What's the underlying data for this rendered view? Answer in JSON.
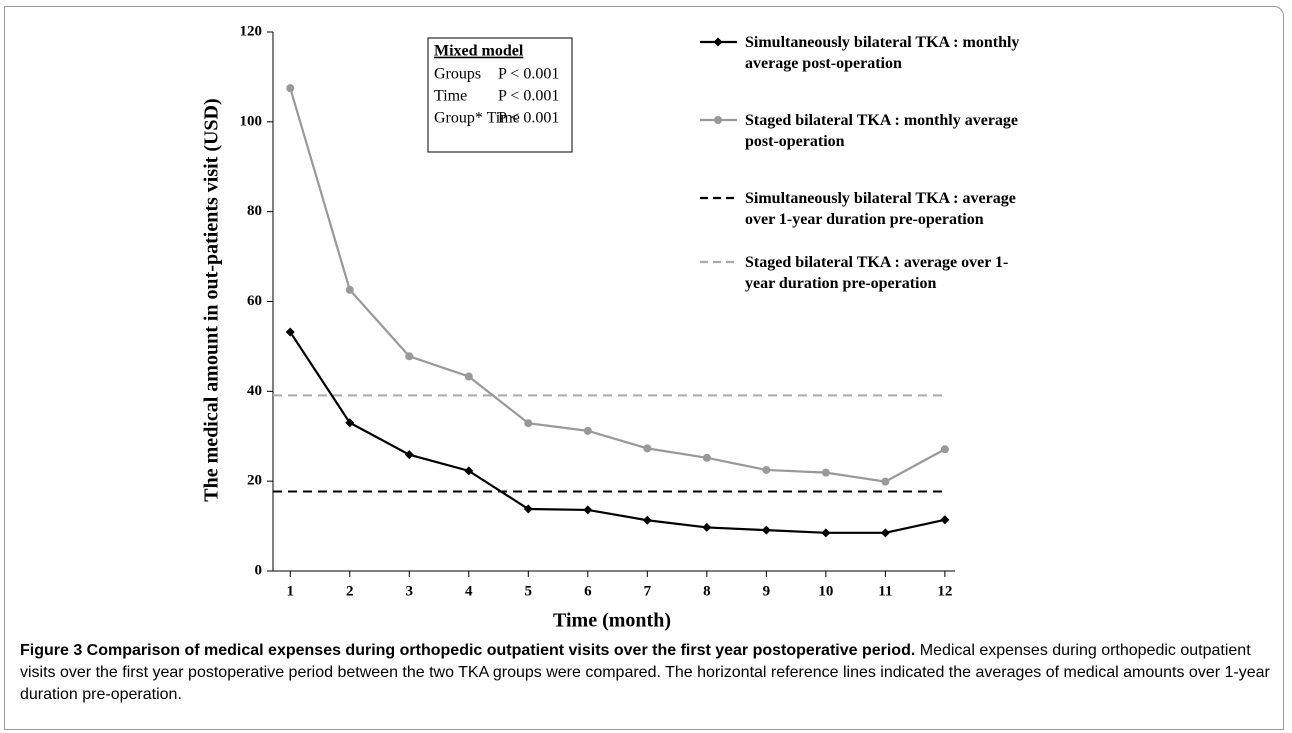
{
  "chart_data": {
    "type": "line",
    "x_label": "Time (month)",
    "y_label": "The medical amount in out-patients visit (USD)",
    "x": [
      1,
      2,
      3,
      4,
      5,
      6,
      7,
      8,
      9,
      10,
      11,
      12
    ],
    "xlim": [
      0.71,
      12.17
    ],
    "xticks": [
      1,
      2,
      3,
      4,
      5,
      6,
      7,
      8,
      9,
      10,
      11,
      12
    ],
    "ylim": [
      0,
      120
    ],
    "yticks": [
      0,
      20,
      40,
      60,
      80,
      100,
      120
    ],
    "series": [
      {
        "name": "Simultaneously bilateral TKA : monthly average post-operation",
        "color": "#000000",
        "marker": "diamond",
        "values": [
          53.2,
          33.0,
          25.9,
          22.3,
          13.8,
          13.6,
          11.3,
          9.7,
          9.1,
          8.5,
          8.5,
          11.4
        ]
      },
      {
        "name": "Staged bilateral TKA : monthly average post-operation",
        "color": "#999999",
        "marker": "circle",
        "values": [
          107.5,
          62.6,
          47.8,
          43.3,
          32.9,
          31.2,
          27.3,
          25.2,
          22.5,
          21.9,
          19.9,
          27.1
        ]
      }
    ],
    "reference_lines": [
      {
        "name": "Simultaneously bilateral TKA : average over 1-year duration pre-operation",
        "color": "#000000",
        "value": 17.7
      },
      {
        "name": "Staged bilateral TKA :  average over 1-year duration pre-operation",
        "color": "#aaaaaa",
        "value": 39.1
      }
    ],
    "annotation": {
      "title": "Mixed model",
      "rows": [
        [
          "Groups",
          "P < 0.001"
        ],
        [
          "Time",
          "P < 0.001"
        ],
        [
          "Group* Time",
          "P < 0.001"
        ]
      ]
    }
  },
  "caption": {
    "title": "Figure 3 Comparison of medical expenses during orthopedic outpatient visits over the first year postoperative period.",
    "text": "Medical expenses during orthopedic outpatient visits over the first year postoperative period between the two TKA groups were compared. The horizontal reference lines indicated the averages of medical amounts over 1-year duration pre-operation."
  }
}
